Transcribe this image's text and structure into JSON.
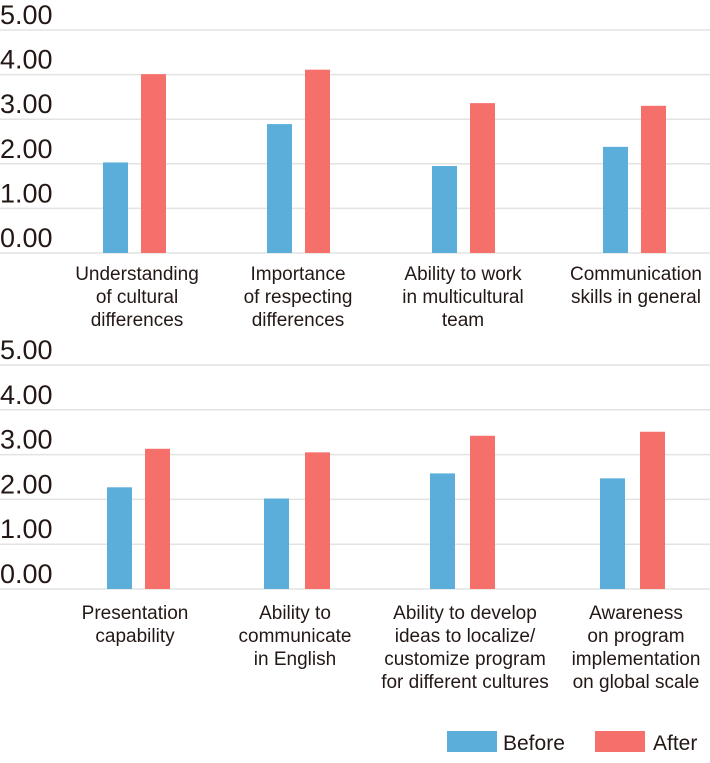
{
  "chart_data": [
    {
      "type": "bar",
      "categories": [
        [
          "Understanding",
          "of cultural",
          "differences"
        ],
        [
          "Importance",
          "of respecting",
          "differences"
        ],
        [
          "Ability to work",
          "in multicultural",
          "team"
        ],
        [
          "Communication",
          "skills in general"
        ]
      ],
      "series": [
        {
          "name": "Before",
          "values": [
            2.03,
            2.89,
            1.95,
            2.38
          ]
        },
        {
          "name": "After",
          "values": [
            4.01,
            4.11,
            3.36,
            3.3
          ]
        }
      ],
      "ylim": [
        0,
        5
      ],
      "yticks": [
        "0.00",
        "1.00",
        "2.00",
        "3.00",
        "4.00",
        "5.00"
      ],
      "grid": true
    },
    {
      "type": "bar",
      "categories": [
        [
          "Presentation",
          "capability"
        ],
        [
          "Ability to",
          "communicate",
          "in English"
        ],
        [
          "Ability to develop",
          "ideas to localize/",
          "customize program",
          "for different cultures"
        ],
        [
          "Awareness",
          "on program",
          "implementation",
          "on global scale"
        ]
      ],
      "series": [
        {
          "name": "Before",
          "values": [
            2.27,
            2.02,
            2.58,
            2.47
          ]
        },
        {
          "name": "After",
          "values": [
            3.13,
            3.05,
            3.42,
            3.51
          ]
        }
      ],
      "ylim": [
        0,
        5
      ],
      "yticks": [
        "0.00",
        "1.00",
        "2.00",
        "3.00",
        "4.00",
        "5.00"
      ],
      "grid": true
    }
  ],
  "legend": {
    "placement": "bottom-right",
    "items": [
      {
        "label": "Before",
        "color": "#5aaed9"
      },
      {
        "label": "After",
        "color": "#f6706b"
      }
    ]
  },
  "colors": {
    "before": "#5aaed9",
    "after": "#f6706b",
    "text": "#231815"
  }
}
